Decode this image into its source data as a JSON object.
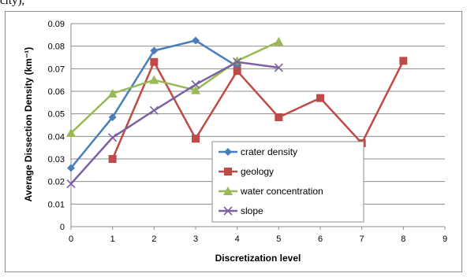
{
  "page": {
    "top_fragment": "city),"
  },
  "chart_data": {
    "type": "line",
    "title": "",
    "xlabel": "Discretization level",
    "ylabel": "Average Dissection Density (km⁻¹)",
    "xlim": [
      0,
      9
    ],
    "ylim": [
      0,
      0.09
    ],
    "x_ticks": [
      "0",
      "1",
      "2",
      "3",
      "4",
      "5",
      "6",
      "7",
      "8",
      "9"
    ],
    "y_ticks": [
      "0",
      "0.01",
      "0.02",
      "0.03",
      "0.04",
      "0.05",
      "0.06",
      "0.07",
      "0.08",
      "0.09"
    ],
    "grid": "horizontal",
    "legend_position": "inside-lower-center",
    "series": [
      {
        "name": "crater density",
        "color": "#4a7ebb",
        "marker": "diamond",
        "x": [
          0,
          1,
          2,
          3,
          4
        ],
        "y": [
          0.026,
          0.0485,
          0.078,
          0.0825,
          0.071
        ]
      },
      {
        "name": "geology",
        "color": "#be4b48",
        "marker": "square",
        "x": [
          1,
          2,
          3,
          4,
          5,
          6,
          7,
          8
        ],
        "y": [
          0.03,
          0.073,
          0.039,
          0.069,
          0.0485,
          0.057,
          0.037,
          0.0735
        ]
      },
      {
        "name": "water concentration",
        "color": "#98b954",
        "marker": "triangle",
        "x": [
          0,
          1,
          2,
          3,
          4,
          5
        ],
        "y": [
          0.0415,
          0.059,
          0.065,
          0.0605,
          0.0735,
          0.082
        ]
      },
      {
        "name": "slope",
        "color": "#7d60a0",
        "marker": "x",
        "x": [
          0,
          1,
          2,
          3,
          4,
          5
        ],
        "y": [
          0.019,
          0.0395,
          0.0515,
          0.063,
          0.073,
          0.0705
        ]
      }
    ]
  }
}
